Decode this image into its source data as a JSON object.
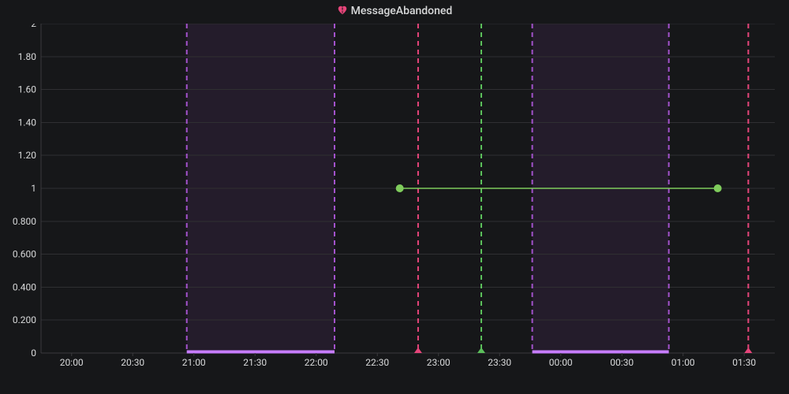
{
  "title": "MessageAbandoned",
  "icon_name": "heartbreak-icon",
  "icon_color": "#e6457a",
  "background_color": "#161719",
  "grid_color": "#2f2f32",
  "axis_color": "#3a3a3d",
  "text_color": "#d8d9da",
  "font_size_title": 14,
  "font_size_tick": 12,
  "chart": {
    "type": "line-with-annotations",
    "x_domain_min": 0,
    "x_domain_max": 720,
    "y_domain_min": 0,
    "y_domain_max": 2,
    "y_ticks": [
      {
        "v": 0,
        "label": "0"
      },
      {
        "v": 0.2,
        "label": "0.200"
      },
      {
        "v": 0.4,
        "label": "0.400"
      },
      {
        "v": 0.6,
        "label": "0.600"
      },
      {
        "v": 0.8,
        "label": "0.800"
      },
      {
        "v": 1.0,
        "label": "1"
      },
      {
        "v": 1.2,
        "label": "1.20"
      },
      {
        "v": 1.4,
        "label": "1.40"
      },
      {
        "v": 1.6,
        "label": "1.60"
      },
      {
        "v": 1.8,
        "label": "1.80"
      },
      {
        "v": 2.0,
        "label": "2"
      }
    ],
    "x_ticks": [
      {
        "v": 30,
        "label": "20:00"
      },
      {
        "v": 90,
        "label": "20:30"
      },
      {
        "v": 150,
        "label": "21:00"
      },
      {
        "v": 210,
        "label": "21:30"
      },
      {
        "v": 270,
        "label": "22:00"
      },
      {
        "v": 330,
        "label": "22:30"
      },
      {
        "v": 390,
        "label": "23:00"
      },
      {
        "v": 450,
        "label": "23:30"
      },
      {
        "v": 510,
        "label": "00:00"
      },
      {
        "v": 570,
        "label": "00:30"
      },
      {
        "v": 630,
        "label": "01:00"
      },
      {
        "v": 690,
        "label": "01:30"
      }
    ],
    "regions": [
      {
        "start": 143,
        "end": 288,
        "fill": "#a352cc",
        "edge": "#a352cc",
        "underline": "#c77dff"
      },
      {
        "start": 482,
        "end": 616,
        "fill": "#a352cc",
        "edge": "#a352cc",
        "underline": "#c77dff"
      }
    ],
    "event_lines": [
      {
        "x": 370,
        "color": "#e6457a",
        "marker": "triangle"
      },
      {
        "x": 432,
        "color": "#5bbf5b",
        "marker": "triangle"
      },
      {
        "x": 694,
        "color": "#e6457a",
        "marker": "triangle"
      }
    ],
    "series": [
      {
        "color": "#7fcc5c",
        "line_width": 1.5,
        "marker_radius": 5,
        "points": [
          {
            "x": 352,
            "y": 1
          },
          {
            "x": 664,
            "y": 1
          }
        ]
      }
    ]
  }
}
